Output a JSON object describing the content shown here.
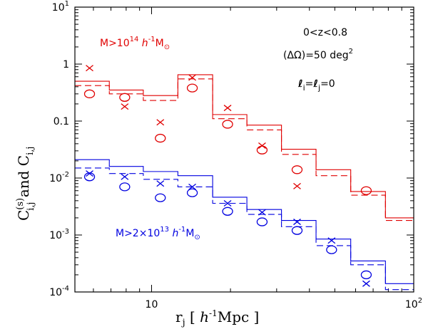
{
  "chart_data": {
    "type": "line",
    "xlabel": "r_j [ h^-1 Mpc ]",
    "ylabel": "C(s)_i,j and C_i,j",
    "xscale": "log",
    "yscale": "log",
    "xlim": [
      5.1,
      100
    ],
    "ylim": [
      0.0001,
      10
    ],
    "x_ticks": [
      {
        "value": 10,
        "label": "10"
      },
      {
        "value": 100,
        "label": "10",
        "sup": "2"
      }
    ],
    "y_ticks": [
      {
        "value": 10,
        "label": "10",
        "sup": "1"
      },
      {
        "value": 1,
        "label": "1",
        "sup": ""
      },
      {
        "value": 0.1,
        "label": "0.1",
        "sup": ""
      },
      {
        "value": 0.01,
        "label": "10",
        "sup": "-2"
      },
      {
        "value": 0.001,
        "label": "10",
        "sup": "-3"
      },
      {
        "value": 0.0001,
        "label": "10",
        "sup": "-4"
      }
    ],
    "bin_edges": [
      5.1,
      6.9,
      9.3,
      12.6,
      17.1,
      23.1,
      31.3,
      42.4,
      57.5,
      78,
      100
    ],
    "annotations": {
      "redshift": "0<z<0.8",
      "area": "(ΔΩ)=50 deg",
      "area_sup": "2",
      "ell": "ℓ",
      "ell_i_sub": "i",
      "ell_eq": "=",
      "ell_j_sub": "j",
      "ell_val": "=0"
    },
    "series": [
      {
        "name": "M>10^14 h^-1 M_sun",
        "color": "#e00000",
        "label_parts": {
          "pre": "M>10",
          "exp1": "14",
          "mid": " h",
          "exp2": "-1",
          "post": "M",
          "sun": "⊙"
        },
        "solid_step": [
          0.5,
          0.35,
          0.28,
          0.65,
          0.13,
          0.085,
          0.032,
          0.014,
          0.0058,
          0.002
        ],
        "dashed_step": [
          0.42,
          0.3,
          0.23,
          0.55,
          0.11,
          0.07,
          0.026,
          0.011,
          0.005,
          0.0018
        ],
        "crosses": {
          "x": [
            5.8,
            7.9,
            10.8,
            14.3,
            19.5,
            26.4,
            35.9,
            48.6,
            65.9,
            88.7
          ],
          "y": [
            0.85,
            0.18,
            0.095,
            0.58,
            0.17,
            0.037,
            0.0072,
            null,
            null,
            null
          ]
        },
        "circles": {
          "x": [
            5.8,
            7.9,
            10.8,
            14.3,
            19.5,
            26.4,
            35.9,
            48.6,
            65.9,
            88.7
          ],
          "y": [
            0.3,
            0.26,
            0.05,
            0.38,
            0.088,
            0.031,
            0.014,
            null,
            0.006,
            null
          ]
        }
      },
      {
        "name": "M>2x10^13 h^-1 M_sun",
        "color": "#0000e0",
        "label_parts": {
          "pre": "M>2×10",
          "exp1": "13",
          "mid": " h",
          "exp2": "-1",
          "post": "M",
          "sun": "⊙"
        },
        "solid_step": [
          0.021,
          0.016,
          0.013,
          0.011,
          0.0046,
          0.0028,
          0.0018,
          0.00085,
          0.00035,
          0.00014
        ],
        "dashed_step": [
          0.015,
          0.012,
          0.0095,
          0.007,
          0.0036,
          0.0023,
          0.0014,
          0.00065,
          0.0003,
          0.00011
        ],
        "crosses": {
          "x": [
            5.8,
            7.9,
            10.8,
            14.3,
            19.5,
            26.4,
            35.9,
            48.6,
            65.9,
            88.7
          ],
          "y": [
            0.012,
            0.0105,
            0.008,
            0.007,
            0.0036,
            0.0025,
            0.0017,
            0.0008,
            0.00014,
            null
          ]
        },
        "circles": {
          "x": [
            5.8,
            7.9,
            10.8,
            14.3,
            19.5,
            26.4,
            35.9,
            48.6,
            65.9,
            88.7
          ],
          "y": [
            0.0105,
            0.007,
            0.0045,
            0.0055,
            0.0026,
            0.0017,
            0.0012,
            0.00055,
            0.0002,
            null
          ]
        }
      }
    ]
  }
}
